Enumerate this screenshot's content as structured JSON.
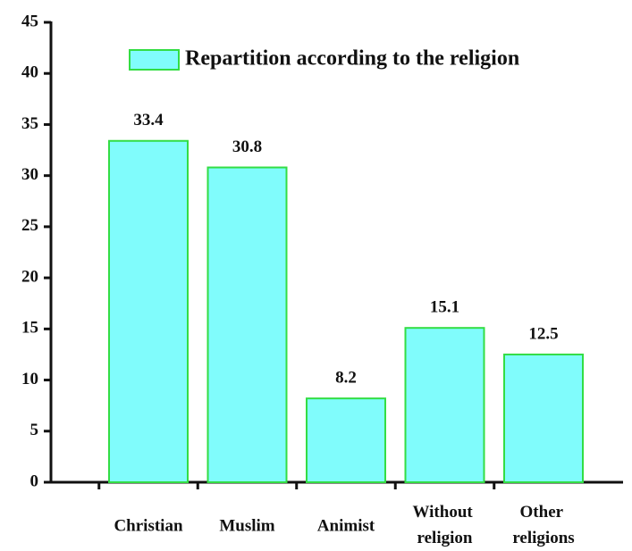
{
  "chart_data": {
    "type": "bar",
    "categories": [
      "Christian",
      "Muslim",
      "Animist",
      "Without religion",
      "Other religions"
    ],
    "series": [
      {
        "name": "Repartition according to the religion",
        "color": "#80fcfc",
        "edge": "#33dd44",
        "values": [
          33.4,
          30.8,
          8.2,
          15.1,
          12.5
        ]
      }
    ],
    "ylim": [
      0,
      45
    ],
    "yticks": [
      0,
      5,
      10,
      15,
      20,
      25,
      30,
      35,
      40,
      45
    ],
    "legend": "top-right"
  }
}
